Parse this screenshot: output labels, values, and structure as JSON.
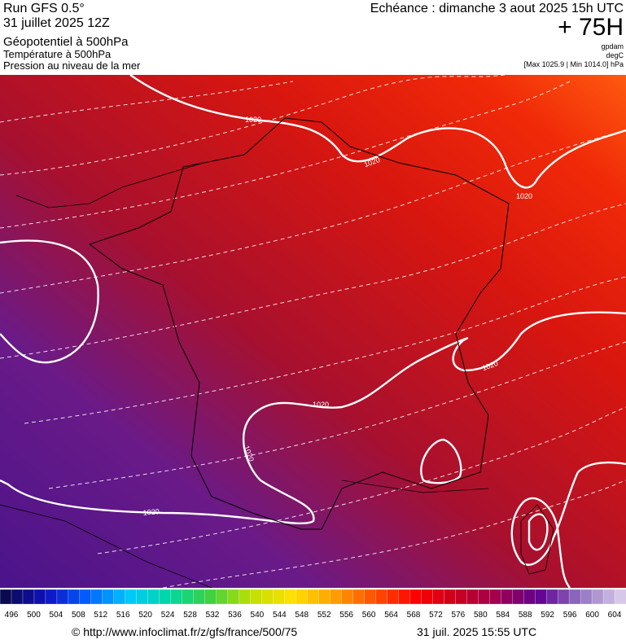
{
  "header": {
    "run": "Run GFS 0.5°",
    "date": "31 juillet 2025 12Z",
    "field1": "Géopotentiel à 500hPa",
    "field2": "Température à 500hPa",
    "field3": "Pression au niveau de la mer",
    "valid": "Echéance : dimanche 3 aout 2025 15h UTC",
    "lead": "+ 75H",
    "unit1": "gpdam",
    "unit2": "degC",
    "extremes": "[Max 1025.9 | Min 1014.0] hPa"
  },
  "contour_labels": [
    "1020",
    "1020",
    "1020",
    "1020",
    "1020",
    "1020",
    "1020"
  ],
  "colorbar": {
    "ticks": [
      496,
      500,
      504,
      508,
      512,
      516,
      520,
      524,
      528,
      532,
      536,
      540,
      544,
      548,
      552,
      556,
      560,
      564,
      568,
      572,
      576,
      580,
      584,
      588,
      592,
      596,
      600,
      604
    ],
    "stops": [
      "#0a0a50",
      "#1010c0",
      "#0060ff",
      "#00c8ff",
      "#00d8a0",
      "#40d040",
      "#c0e000",
      "#ffe000",
      "#ffa000",
      "#ff5000",
      "#ff0000",
      "#c8001e",
      "#a00050",
      "#600090",
      "#9070c0",
      "#d8c8e8"
    ]
  },
  "footer": {
    "source": "© http://www.infoclimat.fr/z/gfs/france/500/75",
    "timestamp": "31 juil. 2025 15:55 UTC"
  }
}
